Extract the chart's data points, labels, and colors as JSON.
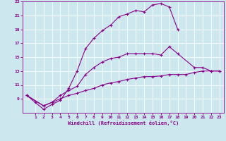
{
  "xlabel": "Windchill (Refroidissement éolien,°C)",
  "background_color": "#cce8ee",
  "line_color": "#880088",
  "xlim": [
    -0.5,
    23.5
  ],
  "ylim": [
    7,
    23
  ],
  "yticks": [
    9,
    11,
    13,
    15,
    17,
    19,
    21,
    23
  ],
  "xticks": [
    1,
    2,
    3,
    4,
    5,
    6,
    7,
    8,
    9,
    10,
    11,
    12,
    13,
    14,
    15,
    16,
    17,
    18,
    19,
    20,
    21,
    22,
    23
  ],
  "curve1_x": [
    0,
    1,
    2,
    3,
    4,
    5,
    6,
    7,
    8,
    9,
    10,
    11,
    12,
    13,
    14,
    15,
    16,
    17,
    18
  ],
  "curve1_y": [
    9.5,
    8.5,
    7.5,
    8.2,
    8.8,
    10.5,
    13.0,
    16.2,
    17.7,
    18.8,
    19.6,
    20.8,
    21.2,
    21.7,
    21.5,
    22.5,
    22.7,
    22.2,
    19.0
  ],
  "curve2_x": [
    0,
    2,
    3,
    4,
    5,
    6,
    7,
    8,
    9,
    10,
    11,
    12,
    13,
    14,
    15,
    16,
    17,
    18,
    20,
    21,
    22,
    23
  ],
  "curve2_y": [
    9.5,
    8.0,
    8.5,
    9.5,
    10.2,
    10.8,
    12.5,
    13.5,
    14.3,
    14.8,
    15.0,
    15.5,
    15.5,
    15.5,
    15.5,
    15.3,
    16.5,
    15.5,
    13.5,
    13.5,
    13.0,
    13.0
  ],
  "curve3_x": [
    0,
    2,
    3,
    4,
    5,
    6,
    7,
    8,
    9,
    10,
    11,
    12,
    13,
    14,
    15,
    16,
    17,
    18,
    19,
    20,
    21,
    22,
    23
  ],
  "curve3_y": [
    9.5,
    8.0,
    8.5,
    9.0,
    9.5,
    9.8,
    10.2,
    10.5,
    11.0,
    11.3,
    11.5,
    11.8,
    12.0,
    12.2,
    12.2,
    12.3,
    12.5,
    12.5,
    12.5,
    12.8,
    13.0,
    13.0,
    13.0
  ]
}
